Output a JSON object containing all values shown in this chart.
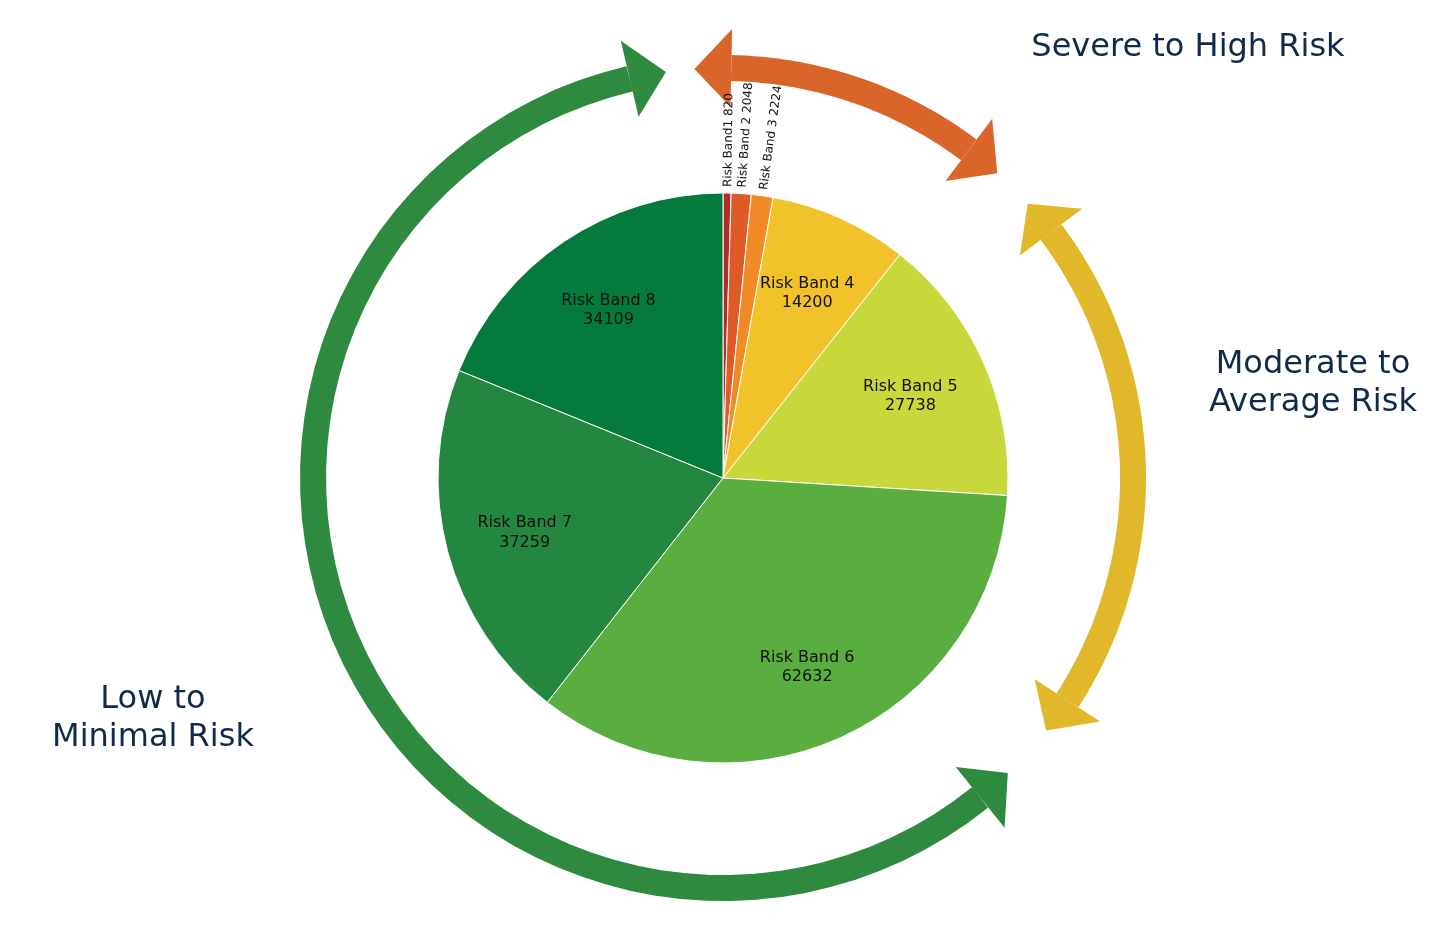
{
  "chart_data": {
    "type": "pie",
    "categories": [
      "Risk Band1",
      "Risk Band 2",
      "Risk Band 3",
      "Risk Band 4",
      "Risk Band 5",
      "Risk Band 6",
      "Risk Band 7",
      "Risk Band 8"
    ],
    "values": [
      820,
      2048,
      2224,
      14200,
      27738,
      62632,
      37259,
      34109
    ],
    "colors": [
      "#b52a25",
      "#e05a28",
      "#f08a25",
      "#f2c22a",
      "#c8d83a",
      "#5aad3f",
      "#23873f",
      "#047a3c"
    ],
    "data_labels": true,
    "annotations": [
      "Severe to High Risk",
      "Moderate to Average Risk",
      "Low to Minimal Risk"
    ]
  }
}
